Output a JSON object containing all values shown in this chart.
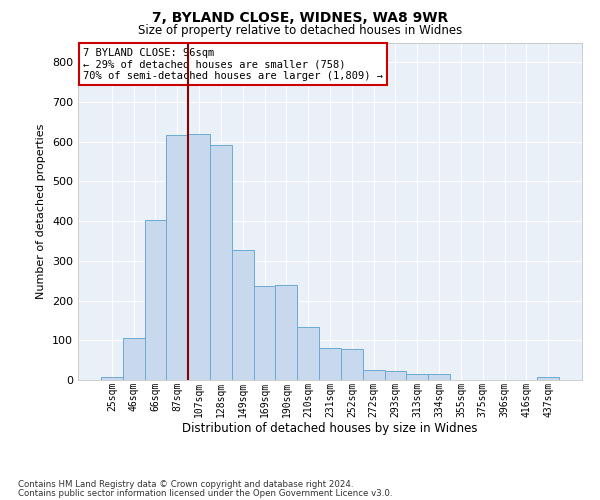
{
  "title1": "7, BYLAND CLOSE, WIDNES, WA8 9WR",
  "title2": "Size of property relative to detached houses in Widnes",
  "xlabel": "Distribution of detached houses by size in Widnes",
  "ylabel": "Number of detached properties",
  "bar_color": "#c8d9ed",
  "bar_edge_color": "#6aaad4",
  "background_color": "#eaf0f8",
  "grid_color": "#ffffff",
  "vline_color": "#8b0000",
  "vline_index": 3.5,
  "annotation_text": "7 BYLAND CLOSE: 96sqm\n← 29% of detached houses are smaller (758)\n70% of semi-detached houses are larger (1,809) →",
  "footer1": "Contains HM Land Registry data © Crown copyright and database right 2024.",
  "footer2": "Contains public sector information licensed under the Open Government Licence v3.0.",
  "categories": [
    "25sqm",
    "46sqm",
    "66sqm",
    "87sqm",
    "107sqm",
    "128sqm",
    "149sqm",
    "169sqm",
    "190sqm",
    "210sqm",
    "231sqm",
    "252sqm",
    "272sqm",
    "293sqm",
    "313sqm",
    "334sqm",
    "355sqm",
    "375sqm",
    "396sqm",
    "416sqm",
    "437sqm"
  ],
  "values": [
    8,
    105,
    402,
    617,
    620,
    592,
    328,
    238,
    240,
    133,
    80,
    78,
    25,
    22,
    15,
    15,
    0,
    0,
    0,
    0,
    8
  ],
  "ylim": [
    0,
    850
  ],
  "yticks": [
    0,
    100,
    200,
    300,
    400,
    500,
    600,
    700,
    800
  ]
}
